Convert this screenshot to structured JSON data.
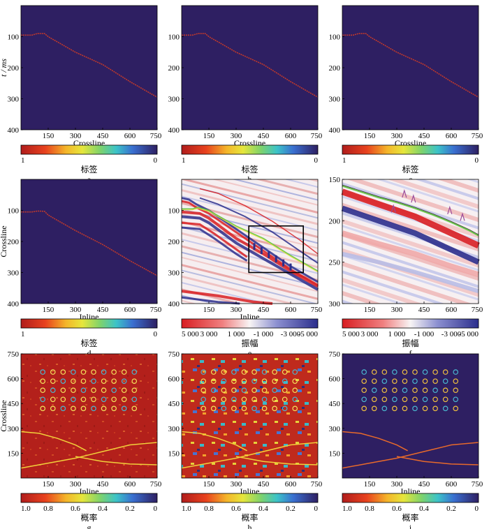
{
  "colors": {
    "label_bg": "#2e1f62",
    "seismic_pos": "#d81e22",
    "seismic_neg": "#2b2e8c",
    "prob_high": "#b8211c",
    "prob_low": "#2e1f62",
    "horizon_red": "#c0392b",
    "horizon_green": "#6ac74a",
    "horizon_purple": "#9a4a9a",
    "box": "#000000"
  },
  "chart_data": [
    {
      "panel": "a",
      "type": "heatmap",
      "xlabel": "Crossline",
      "ylabel": "t / ms",
      "xticks": [
        "150",
        "300",
        "450",
        "600",
        "750"
      ],
      "yticks": [
        "100",
        "200",
        "300",
        "400"
      ],
      "xlim": [
        0,
        750
      ],
      "ylim": [
        0,
        400
      ],
      "colorbar": {
        "label": "标签",
        "ticks": [
          "1",
          "0"
        ],
        "scale": "jet_r"
      },
      "horizon": [
        [
          0,
          95
        ],
        [
          60,
          95
        ],
        [
          90,
          90
        ],
        [
          130,
          90
        ],
        [
          150,
          100
        ],
        [
          300,
          150
        ],
        [
          450,
          190
        ],
        [
          600,
          245
        ],
        [
          750,
          295
        ]
      ]
    },
    {
      "panel": "b",
      "type": "heatmap",
      "xlabel": "Crossline",
      "ylabel": "",
      "xticks": [
        "150",
        "300",
        "450",
        "600",
        "750"
      ],
      "yticks": [
        "100",
        "200",
        "300",
        "400"
      ],
      "xlim": [
        0,
        750
      ],
      "ylim": [
        0,
        400
      ],
      "colorbar": {
        "label": "标签",
        "ticks": [
          "1",
          "0"
        ],
        "scale": "jet_r"
      },
      "horizon": [
        [
          0,
          95
        ],
        [
          60,
          95
        ],
        [
          90,
          90
        ],
        [
          130,
          90
        ],
        [
          150,
          100
        ],
        [
          300,
          150
        ],
        [
          450,
          190
        ],
        [
          600,
          245
        ],
        [
          750,
          295
        ]
      ]
    },
    {
      "panel": "c",
      "type": "heatmap",
      "xlabel": "Crossline",
      "ylabel": "",
      "xticks": [
        "150",
        "300",
        "450",
        "600",
        "750"
      ],
      "yticks": [
        "100",
        "200",
        "300",
        "400"
      ],
      "xlim": [
        0,
        750
      ],
      "ylim": [
        0,
        400
      ],
      "colorbar": {
        "label": "标签",
        "ticks": [
          "1",
          "0"
        ],
        "scale": "jet_r"
      },
      "horizon": [
        [
          0,
          95
        ],
        [
          60,
          95
        ],
        [
          90,
          90
        ],
        [
          130,
          90
        ],
        [
          150,
          100
        ],
        [
          300,
          150
        ],
        [
          450,
          190
        ],
        [
          600,
          245
        ],
        [
          750,
          295
        ]
      ]
    },
    {
      "panel": "d",
      "type": "heatmap",
      "xlabel": "Inline",
      "ylabel": "Crossline",
      "xticks": [
        "150",
        "300",
        "450",
        "600",
        "750"
      ],
      "yticks": [
        "100",
        "200",
        "300",
        "400"
      ],
      "xlim": [
        0,
        750
      ],
      "ylim": [
        0,
        400
      ],
      "colorbar": {
        "label": "标签",
        "ticks": [
          "1",
          "0"
        ],
        "scale": "jet_r"
      },
      "horizon": [
        [
          0,
          105
        ],
        [
          60,
          105
        ],
        [
          90,
          102
        ],
        [
          130,
          103
        ],
        [
          150,
          115
        ],
        [
          300,
          165
        ],
        [
          450,
          210
        ],
        [
          600,
          262
        ],
        [
          750,
          310
        ]
      ]
    },
    {
      "panel": "e",
      "type": "heatmap",
      "xlabel": "Inline",
      "ylabel": "",
      "xticks": [
        "150",
        "300",
        "450",
        "600",
        "750"
      ],
      "yticks": [
        "100",
        "200",
        "300",
        "400"
      ],
      "xlim": [
        0,
        750
      ],
      "ylim": [
        0,
        400
      ],
      "colorbar": {
        "label": "振幅",
        "ticks": [
          "5 000",
          "3 000",
          "1 000",
          "-1 000",
          "-3 000",
          "-5 000"
        ],
        "scale": "seismic"
      },
      "zoom_box": {
        "x": [
          370,
          670
        ],
        "y": [
          150,
          300
        ]
      }
    },
    {
      "panel": "f",
      "type": "heatmap",
      "xlabel": "",
      "ylabel": "",
      "xticks": [
        "150",
        "300",
        "450",
        "600",
        "750"
      ],
      "yticks": [
        "150",
        "200",
        "250",
        "300"
      ],
      "xlim": [
        0,
        750
      ],
      "ylim": [
        150,
        300
      ],
      "colorbar": {
        "label": "振幅",
        "ticks": [
          "5 000",
          "3 000",
          "1 000",
          "-1 000",
          "-3 000",
          "-5 000"
        ],
        "scale": "seismic"
      }
    },
    {
      "panel": "g",
      "type": "heatmap",
      "xlabel": "Inline",
      "ylabel": "Crossline",
      "xticks": [
        "150",
        "300",
        "450",
        "600",
        "750"
      ],
      "yticks": [
        "150",
        "300",
        "450",
        "600",
        "750"
      ],
      "xlim": [
        0,
        750
      ],
      "ylim": [
        0,
        750
      ],
      "colorbar": {
        "label": "概率",
        "ticks": [
          "1.0",
          "0.8",
          "0.6",
          "0.4",
          "0.2",
          "0"
        ],
        "scale": "jet_r"
      }
    },
    {
      "panel": "h",
      "type": "heatmap",
      "xlabel": "Inline",
      "ylabel": "",
      "xticks": [
        "150",
        "300",
        "450",
        "600",
        "750"
      ],
      "yticks": [
        "150",
        "300",
        "450",
        "600",
        "750"
      ],
      "xlim": [
        0,
        750
      ],
      "ylim": [
        0,
        750
      ],
      "colorbar": {
        "label": "概率",
        "ticks": [
          "1.0",
          "0.8",
          "0.6",
          "0.4",
          "0.2",
          "0"
        ],
        "scale": "jet_r"
      }
    },
    {
      "panel": "i",
      "type": "heatmap",
      "xlabel": "Inline",
      "ylabel": "",
      "xticks": [
        "150",
        "300",
        "450",
        "600",
        "750"
      ],
      "yticks": [
        "150",
        "300",
        "450",
        "600",
        "750"
      ],
      "xlim": [
        0,
        750
      ],
      "ylim": [
        0,
        750
      ],
      "colorbar": {
        "label": "概率",
        "ticks": [
          "1.0",
          "0.8",
          "0.6",
          "0.4",
          "0.2",
          "0"
        ],
        "scale": "jet_r"
      }
    }
  ]
}
